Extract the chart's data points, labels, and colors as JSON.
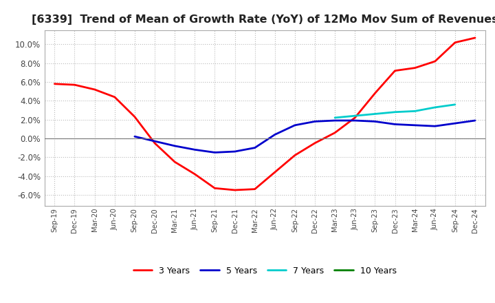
{
  "title": "[6339]  Trend of Mean of Growth Rate (YoY) of 12Mo Mov Sum of Revenues",
  "title_fontsize": 11.5,
  "ylim": [
    -0.072,
    0.115
  ],
  "yticks": [
    -0.06,
    -0.04,
    -0.02,
    0.0,
    0.02,
    0.04,
    0.06,
    0.08,
    0.1
  ],
  "x_labels": [
    "Sep-19",
    "Dec-19",
    "Mar-20",
    "Jun-20",
    "Sep-20",
    "Dec-20",
    "Mar-21",
    "Jun-21",
    "Sep-21",
    "Dec-21",
    "Mar-22",
    "Jun-22",
    "Sep-22",
    "Dec-22",
    "Mar-23",
    "Jun-23",
    "Sep-23",
    "Dec-23",
    "Mar-24",
    "Jun-24",
    "Sep-24",
    "Dec-24"
  ],
  "series": {
    "3 Years": {
      "color": "#FF0000",
      "linewidth": 2.0,
      "data": [
        0.058,
        0.057,
        0.052,
        0.044,
        0.023,
        -0.005,
        -0.025,
        -0.038,
        -0.053,
        -0.055,
        -0.054,
        -0.036,
        -0.018,
        -0.005,
        0.006,
        0.022,
        0.048,
        0.072,
        0.075,
        0.082,
        0.102,
        0.107
      ]
    },
    "5 Years": {
      "color": "#0000CC",
      "linewidth": 2.0,
      "data": [
        null,
        null,
        null,
        null,
        0.002,
        -0.003,
        -0.008,
        -0.012,
        -0.015,
        -0.014,
        -0.01,
        0.004,
        0.014,
        0.018,
        0.019,
        0.019,
        0.018,
        0.015,
        0.014,
        0.013,
        0.016,
        0.019
      ]
    },
    "7 Years": {
      "color": "#00CCCC",
      "linewidth": 2.0,
      "data": [
        null,
        null,
        null,
        null,
        null,
        null,
        null,
        null,
        null,
        null,
        null,
        null,
        null,
        null,
        0.022,
        0.024,
        0.026,
        0.028,
        0.029,
        0.033,
        0.036,
        null
      ]
    },
    "10 Years": {
      "color": "#008000",
      "linewidth": 2.0,
      "data": [
        null,
        null,
        null,
        null,
        null,
        null,
        null,
        null,
        null,
        null,
        null,
        null,
        null,
        null,
        null,
        null,
        null,
        null,
        null,
        null,
        null,
        null
      ]
    }
  },
  "background_color": "#FFFFFF",
  "plot_background": "#FFFFFF",
  "grid_color": "#BBBBBB",
  "legend_ncol": 4
}
